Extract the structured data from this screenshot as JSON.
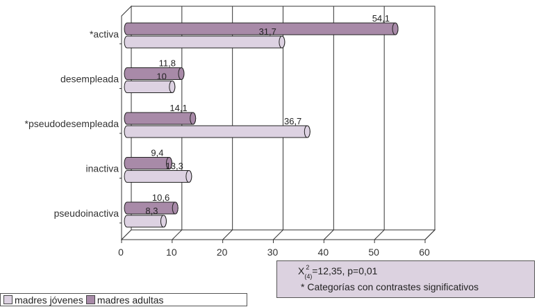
{
  "chart_data": {
    "type": "bar",
    "orientation": "horizontal",
    "style": "3d-cylinder",
    "categories": [
      "*activa",
      "desempleada",
      "*pseudodesempleada",
      "inactiva",
      "pseudoinactiva"
    ],
    "series": [
      {
        "name": "madres adultas",
        "color": "#a88aa8",
        "values": [
          54.1,
          11.8,
          14.1,
          9.4,
          10.6
        ],
        "labels": [
          "54,1",
          "11,8",
          "14,1",
          "9,4",
          "10,6"
        ]
      },
      {
        "name": "madres jóvenes",
        "color": "#ddd2e2",
        "values": [
          31.7,
          10,
          36.7,
          13.3,
          8.3
        ],
        "labels": [
          "31,7",
          "10",
          "36,7",
          "13,3",
          "8,3"
        ]
      }
    ],
    "xlim": [
      0,
      60
    ],
    "xticks": [
      "0",
      "10",
      "20",
      "30",
      "40",
      "50",
      "60"
    ],
    "grid": true,
    "legend_position": "bottom-left"
  },
  "stats": {
    "chi_symbol": "X",
    "chi_sub": "(4)",
    "chi_sup": "2",
    "chi_rest": " =12,35, p=0,01",
    "note": "* Categorías con contrastes significativos"
  },
  "legend": {
    "items": [
      {
        "label": "madres jóvenes",
        "color": "#ddd2e2"
      },
      {
        "label": "madres adultas",
        "color": "#a88aa8"
      }
    ]
  }
}
